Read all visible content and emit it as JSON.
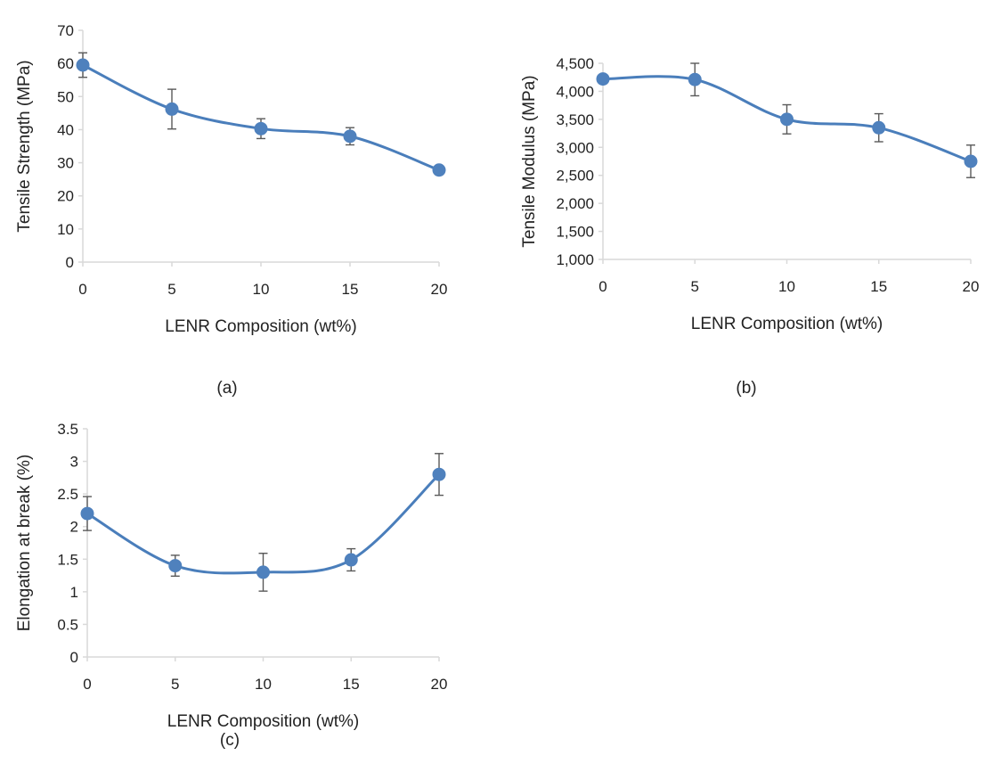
{
  "chart_data": [
    {
      "id": "a",
      "type": "line",
      "caption": "(a)",
      "xlabel": "LENR Composition (wt%)",
      "ylabel": "Tensile Strength (MPa)",
      "x": [
        0,
        5,
        10,
        15,
        20
      ],
      "xticks": [
        "0",
        "5",
        "10",
        "15",
        "20"
      ],
      "ylim": [
        0,
        70
      ],
      "yticks": [
        0,
        10,
        20,
        30,
        40,
        50,
        60,
        70
      ],
      "ytick_labels": [
        "0",
        "10",
        "20",
        "30",
        "40",
        "50",
        "60",
        "70"
      ],
      "series": [
        {
          "values": [
            59.5,
            46.2,
            40.3,
            38.0,
            27.8
          ],
          "errors": [
            3.7,
            6.0,
            3.0,
            2.6,
            0.6
          ]
        }
      ]
    },
    {
      "id": "b",
      "type": "line",
      "caption": "(b)",
      "xlabel": "LENR Composition (wt%)",
      "ylabel": "Tensile Modulus (MPa)",
      "x": [
        0,
        5,
        10,
        15,
        20
      ],
      "xticks": [
        "0",
        "5",
        "10",
        "15",
        "20"
      ],
      "ylim": [
        1000,
        4500
      ],
      "yticks": [
        1000,
        1500,
        2000,
        2500,
        3000,
        3500,
        4000,
        4500
      ],
      "ytick_labels": [
        "1,000",
        "1,500",
        "2,000",
        "2,500",
        "3,000",
        "3,500",
        "4,000",
        "4,500"
      ],
      "series": [
        {
          "values": [
            4220,
            4210,
            3500,
            3350,
            2750
          ],
          "errors": [
            30,
            290,
            260,
            250,
            290
          ]
        }
      ]
    },
    {
      "id": "c",
      "type": "line",
      "caption": "(c)",
      "xlabel": "LENR Composition (wt%)",
      "ylabel": "Elongation at break (%)",
      "x": [
        0,
        5,
        10,
        15,
        20
      ],
      "xticks": [
        "0",
        "5",
        "10",
        "15",
        "20"
      ],
      "ylim": [
        0,
        3.5
      ],
      "yticks": [
        0,
        0.5,
        1,
        1.5,
        2,
        2.5,
        3,
        3.5
      ],
      "ytick_labels": [
        "0",
        "0.5",
        "1",
        "1.5",
        "2",
        "2.5",
        "3",
        "3.5"
      ],
      "series": [
        {
          "values": [
            2.2,
            1.4,
            1.3,
            1.49,
            2.8
          ],
          "errors": [
            0.26,
            0.16,
            0.29,
            0.17,
            0.32
          ]
        }
      ]
    }
  ]
}
